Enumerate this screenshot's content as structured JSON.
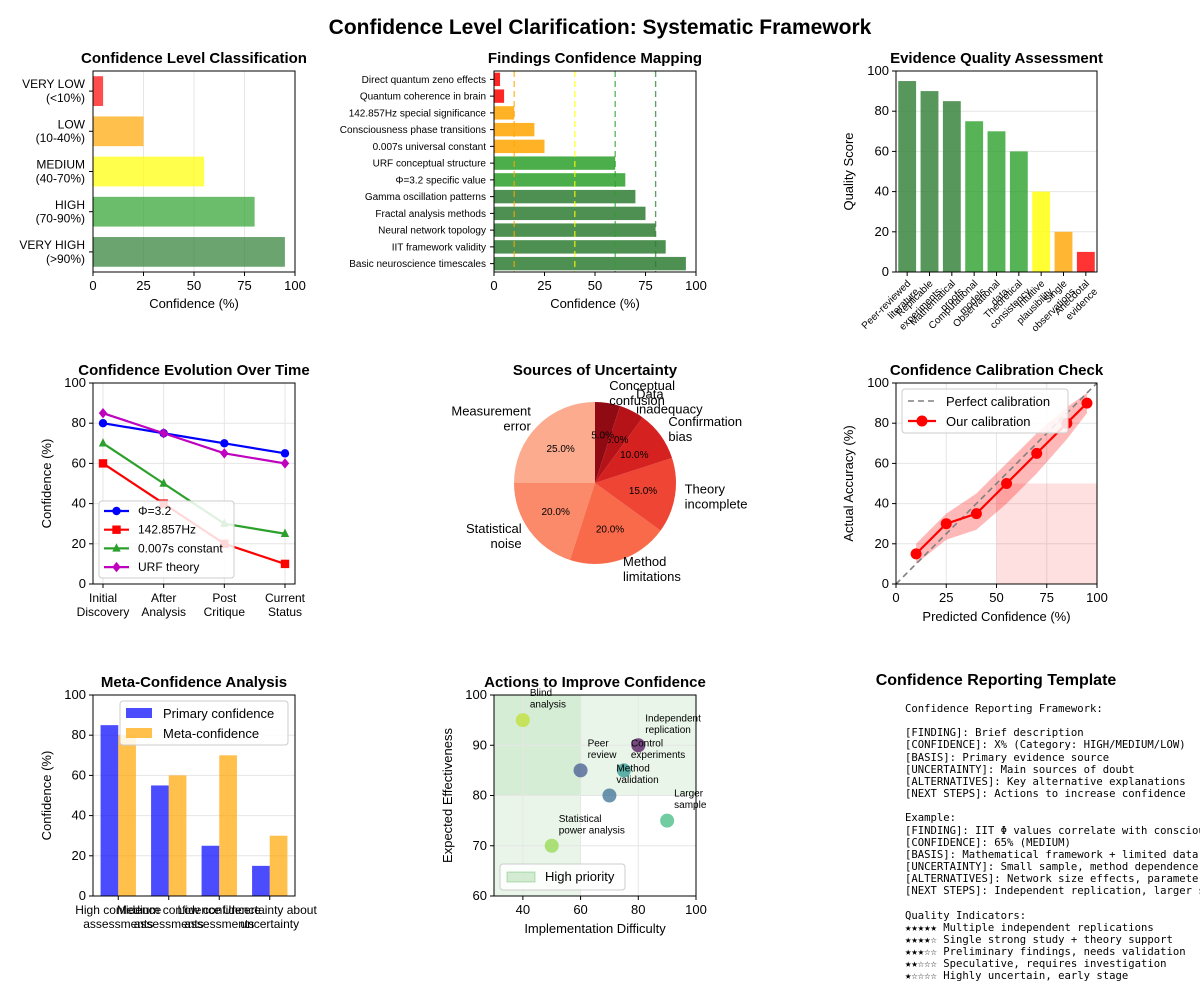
{
  "title": "Confidence Level Clarification: Systematic Framework",
  "colors": {
    "green_dark": "#2e7d32",
    "green": "#2ca02c",
    "yellow": "#ffff00",
    "orange": "#ffa500",
    "red": "#ff0000",
    "blue": "#0000ff",
    "magenta": "#bf00bf"
  },
  "charts": [
    {
      "id": "classification",
      "type": "bar",
      "orientation": "horizontal",
      "title": "Confidence Level Classification",
      "xlabel": "Confidence (%)",
      "xlim": [
        0,
        100
      ],
      "xticks": [
        0,
        25,
        50,
        75,
        100
      ],
      "grid": true,
      "categories": [
        [
          "VERY HIGH",
          "(>90%)"
        ],
        [
          "HIGH",
          "(70-90%)"
        ],
        [
          "MEDIUM",
          "(40-70%)"
        ],
        [
          "LOW",
          "(10-40%)"
        ],
        [
          "VERY LOW",
          "(<10%)"
        ]
      ],
      "values": [
        95,
        80,
        55,
        25,
        5
      ],
      "bar_colors": [
        "darkgreen",
        "green",
        "yellow",
        "orange",
        "red"
      ]
    },
    {
      "id": "findings",
      "type": "bar",
      "orientation": "horizontal",
      "title": "Findings Confidence Mapping",
      "xlabel": "Confidence (%)",
      "xlim": [
        0,
        100
      ],
      "xticks": [
        0,
        25,
        50,
        75,
        100
      ],
      "reference_lines": [
        10,
        40,
        60,
        80
      ],
      "reference_line_colors": [
        "orange",
        "yellow",
        "green",
        "darkgreen"
      ],
      "categories": [
        "Basic neuroscience timescales",
        "IIT framework validity",
        "Neural network topology",
        "Fractal analysis methods",
        "Gamma oscillation patterns",
        "Φ=3.2 specific value",
        "URF conceptual structure",
        "0.007s universal constant",
        "Consciousness phase transitions",
        "142.857Hz special significance",
        "Quantum coherence in brain",
        "Direct quantum zeno effects"
      ],
      "values": [
        95,
        85,
        80,
        75,
        70,
        65,
        60,
        25,
        20,
        10,
        5,
        3
      ],
      "bar_colors": [
        "darkgreen",
        "darkgreen",
        "darkgreen",
        "darkgreen",
        "darkgreen",
        "green",
        "green",
        "orange",
        "orange",
        "orange",
        "red",
        "red"
      ]
    },
    {
      "id": "evidence",
      "type": "bar",
      "orientation": "vertical",
      "title": "Evidence Quality Assessment",
      "ylabel": "Quality Score",
      "ylim": [
        0,
        100
      ],
      "yticks": [
        0,
        20,
        40,
        60,
        80,
        100
      ],
      "grid": true,
      "categories": [
        [
          "Peer-reviewed",
          "literature"
        ],
        [
          "Replicable",
          "experiments"
        ],
        [
          "Mathematical",
          "proofs"
        ],
        [
          "Computational",
          "models"
        ],
        [
          "Observational",
          "data"
        ],
        [
          "Theoretical",
          "consistency"
        ],
        [
          "Intuitive",
          "plausibility"
        ],
        [
          "Single",
          "observations"
        ],
        [
          "Anecdotal",
          "evidence"
        ]
      ],
      "values": [
        95,
        90,
        85,
        75,
        70,
        60,
        40,
        20,
        10
      ],
      "bar_colors": [
        "darkgreen",
        "darkgreen",
        "darkgreen",
        "green",
        "green",
        "green",
        "yellow",
        "orange",
        "red"
      ]
    },
    {
      "id": "evolution",
      "type": "line",
      "title": "Confidence Evolution Over Time",
      "ylabel": "Confidence (%)",
      "ylim": [
        0,
        100
      ],
      "yticks": [
        0,
        20,
        40,
        60,
        80,
        100
      ],
      "grid": true,
      "categories": [
        [
          "Initial",
          "Discovery"
        ],
        [
          "After",
          "Analysis"
        ],
        [
          "Post",
          "Critique"
        ],
        [
          "Current",
          "Status"
        ]
      ],
      "series": [
        {
          "name": "Φ=3.2",
          "values": [
            80,
            75,
            70,
            65
          ],
          "color": "blue",
          "marker": "circle"
        },
        {
          "name": "142.857Hz",
          "values": [
            60,
            40,
            20,
            10
          ],
          "color": "red",
          "marker": "square"
        },
        {
          "name": "0.007s constant",
          "values": [
            70,
            50,
            30,
            25
          ],
          "color": "green",
          "marker": "triangle"
        },
        {
          "name": "URF theory",
          "values": [
            85,
            75,
            65,
            60
          ],
          "color": "magenta",
          "marker": "diamond"
        }
      ],
      "legend": "lower-left"
    },
    {
      "id": "uncertainty",
      "type": "pie",
      "title": "Sources of Uncertainty",
      "labels": [
        "Measurement\nerror",
        "Statistical\nnoise",
        "Method\nlimitations",
        "Theory\nincomplete",
        "Confirmation\nbias",
        "Data\ninadequacy",
        "Conceptual\nconfusion"
      ],
      "values": [
        25,
        20,
        20,
        15,
        10,
        5,
        5
      ],
      "value_labels": [
        "25.0%",
        "20.0%",
        "20.0%",
        "15.0%",
        "10.0%",
        "5.0%",
        "5.0%"
      ],
      "slice_colors": [
        "#fcab8f",
        "#fb8a6a",
        "#f96a4a",
        "#ee4535",
        "#d52221",
        "#b61319",
        "#8f0a12"
      ]
    },
    {
      "id": "calibration",
      "type": "line",
      "title": "Confidence Calibration Check",
      "xlabel": "Predicted Confidence (%)",
      "ylabel": "Actual Accuracy (%)",
      "xlim": [
        0,
        100
      ],
      "ylim": [
        0,
        100
      ],
      "xticks": [
        0,
        25,
        50,
        75,
        100
      ],
      "yticks": [
        0,
        20,
        40,
        60,
        80,
        100
      ],
      "grid": true,
      "series": [
        {
          "name": "Perfect calibration",
          "x": [
            0,
            100
          ],
          "y": [
            0,
            100
          ],
          "color": "gray",
          "style": "dashed"
        },
        {
          "name": "Our calibration",
          "x": [
            10,
            25,
            40,
            55,
            70,
            85,
            95
          ],
          "y": [
            15,
            30,
            35,
            50,
            65,
            80,
            90
          ],
          "lower": [
            10,
            22,
            27,
            40,
            55,
            72,
            85
          ],
          "upper": [
            20,
            35,
            45,
            60,
            75,
            88,
            95
          ],
          "color": "red"
        }
      ],
      "shaded_region": {
        "x": [
          50,
          100
        ],
        "y": [
          0,
          50
        ]
      },
      "legend": "top-left"
    },
    {
      "id": "meta",
      "type": "bar",
      "orientation": "vertical",
      "title": "Meta-Confidence Analysis",
      "ylabel": "Confidence (%)",
      "ylim": [
        0,
        100
      ],
      "yticks": [
        0,
        20,
        40,
        60,
        80,
        100
      ],
      "grid": true,
      "categories": [
        [
          "High confidence",
          "assessments"
        ],
        [
          "Medium confidence",
          "assessments"
        ],
        [
          "Low confidence",
          "assessments"
        ],
        [
          "Uncertainty about",
          "uncertainty"
        ]
      ],
      "series": [
        {
          "name": "Primary confidence",
          "values": [
            85,
            55,
            25,
            15
          ],
          "color": "blue"
        },
        {
          "name": "Meta-confidence",
          "values": [
            80,
            60,
            70,
            30
          ],
          "color": "orange"
        }
      ],
      "legend": "top-right"
    },
    {
      "id": "actions",
      "type": "scatter",
      "title": "Actions to Improve Confidence",
      "xlabel": "Implementation Difficulty",
      "ylabel": "Expected Effectiveness",
      "xlim": [
        30,
        100
      ],
      "ylim": [
        60,
        100
      ],
      "xticks": [
        40,
        60,
        80,
        100
      ],
      "yticks": [
        60,
        70,
        80,
        90,
        100
      ],
      "grid": true,
      "points": [
        {
          "label": "Independent\nreplication",
          "x": 80,
          "y": 90,
          "color": "#440154"
        },
        {
          "label": "Peer\nreview",
          "x": 60,
          "y": 85,
          "color": "#3b528b"
        },
        {
          "label": "Control\nexperiments",
          "x": 75,
          "y": 85,
          "color": "#21918c"
        },
        {
          "label": "Method\nvalidation",
          "x": 70,
          "y": 80,
          "color": "#31688e"
        },
        {
          "label": "Larger\nsample",
          "x": 90,
          "y": 75,
          "color": "#35b779"
        },
        {
          "label": "Statistical\npower analysis",
          "x": 50,
          "y": 70,
          "color": "#8fd744"
        },
        {
          "label": "Blind\nanalysis",
          "x": 40,
          "y": 95,
          "color": "#bddf26"
        }
      ],
      "regions": [
        {
          "x": [
            30,
            60
          ],
          "y": [
            60,
            100
          ],
          "color": "green"
        },
        {
          "x": [
            30,
            100
          ],
          "y": [
            80,
            100
          ],
          "color": "green"
        }
      ],
      "legend_label": "High priority",
      "legend": "lower-left"
    }
  ],
  "template": {
    "title": "Confidence Reporting Template",
    "text": "Confidence Reporting Framework:\n\n[FINDING]: Brief description\n[CONFIDENCE]: X% (Category: HIGH/MEDIUM/LOW)\n[BASIS]: Primary evidence source\n[UNCERTAINTY]: Main sources of doubt\n[ALTERNATIVES]: Key alternative explanations\n[NEXT STEPS]: Actions to increase confidence\n\nExample:\n[FINDING]: IIT Φ values correlate with consciousness\n[CONFIDENCE]: 65% (MEDIUM)\n[BASIS]: Mathematical framework + limited data\n[UNCERTAINTY]: Small sample, method dependence\n[ALTERNATIVES]: Network size effects, parameter choice\n[NEXT STEPS]: Independent replication, larger sample\n\nQuality Indicators:\n★★★★★ Multiple independent replications\n★★★★☆ Single strong study + theory support\n★★★☆☆ Preliminary findings, needs validation\n★★☆☆☆ Speculative, requires investigation\n★☆☆☆☆ Highly uncertain, early stage"
  }
}
